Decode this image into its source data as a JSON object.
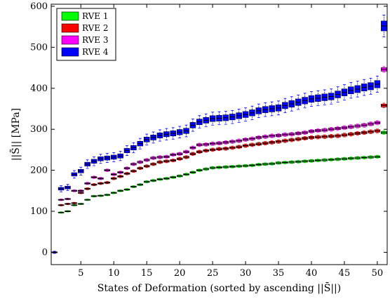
{
  "chart_data": {
    "type": "box",
    "xlabel": "States of Deformation (sorted by ascending ||S̄||)",
    "ylabel": "||S̄|| [MPa]",
    "xlim": [
      0.5,
      51.5
    ],
    "ylim": [
      -30,
      605
    ],
    "xticks": [
      5,
      10,
      15,
      20,
      25,
      30,
      35,
      40,
      45,
      50
    ],
    "yticks": [
      0,
      100,
      200,
      300,
      400,
      500,
      600
    ],
    "grid": false,
    "legend_position": "top-left",
    "series": [
      {
        "name": "RVE 1",
        "color": "#00ff00",
        "values": [
          0,
          97,
          100,
          115,
          118,
          128,
          137,
          138,
          140,
          145,
          150,
          153,
          160,
          165,
          172,
          175,
          178,
          180,
          183,
          186,
          190,
          195,
          200,
          203,
          206,
          207,
          208,
          209,
          210,
          211,
          212,
          214,
          215,
          216,
          218,
          219,
          220,
          221,
          222,
          223,
          224,
          225,
          226,
          227,
          228,
          229,
          230,
          231,
          232,
          233,
          292
        ]
      },
      {
        "name": "RVE 2",
        "color": "#ff0000",
        "values": [
          0,
          115,
          118,
          120,
          145,
          155,
          165,
          168,
          170,
          180,
          185,
          192,
          198,
          205,
          210,
          215,
          220,
          222,
          224,
          228,
          232,
          240,
          245,
          248,
          250,
          252,
          253,
          255,
          257,
          260,
          262,
          264,
          266,
          268,
          270,
          272,
          274,
          276,
          278,
          280,
          281,
          282,
          283,
          284,
          286,
          288,
          290,
          292,
          294,
          296,
          358
        ]
      },
      {
        "name": "RVE 3",
        "color": "#ff00ff",
        "values": [
          0,
          128,
          130,
          150,
          150,
          168,
          183,
          180,
          200,
          190,
          195,
          205,
          215,
          220,
          225,
          230,
          232,
          233,
          238,
          240,
          245,
          255,
          262,
          263,
          265,
          266,
          268,
          270,
          272,
          275,
          277,
          280,
          282,
          284,
          285,
          287,
          288,
          290,
          292,
          295,
          297,
          298,
          300,
          302,
          304,
          306,
          308,
          310,
          313,
          316,
          446
        ]
      },
      {
        "name": "RVE 4",
        "color": "#0000ff",
        "values": [
          0,
          155,
          158,
          190,
          198,
          215,
          222,
          228,
          230,
          232,
          235,
          248,
          255,
          265,
          275,
          280,
          285,
          288,
          290,
          293,
          296,
          310,
          318,
          322,
          326,
          327,
          328,
          330,
          333,
          336,
          340,
          345,
          348,
          350,
          352,
          358,
          362,
          366,
          370,
          374,
          376,
          378,
          380,
          385,
          390,
          395,
          398,
          402,
          405,
          410,
          552
        ]
      }
    ]
  }
}
